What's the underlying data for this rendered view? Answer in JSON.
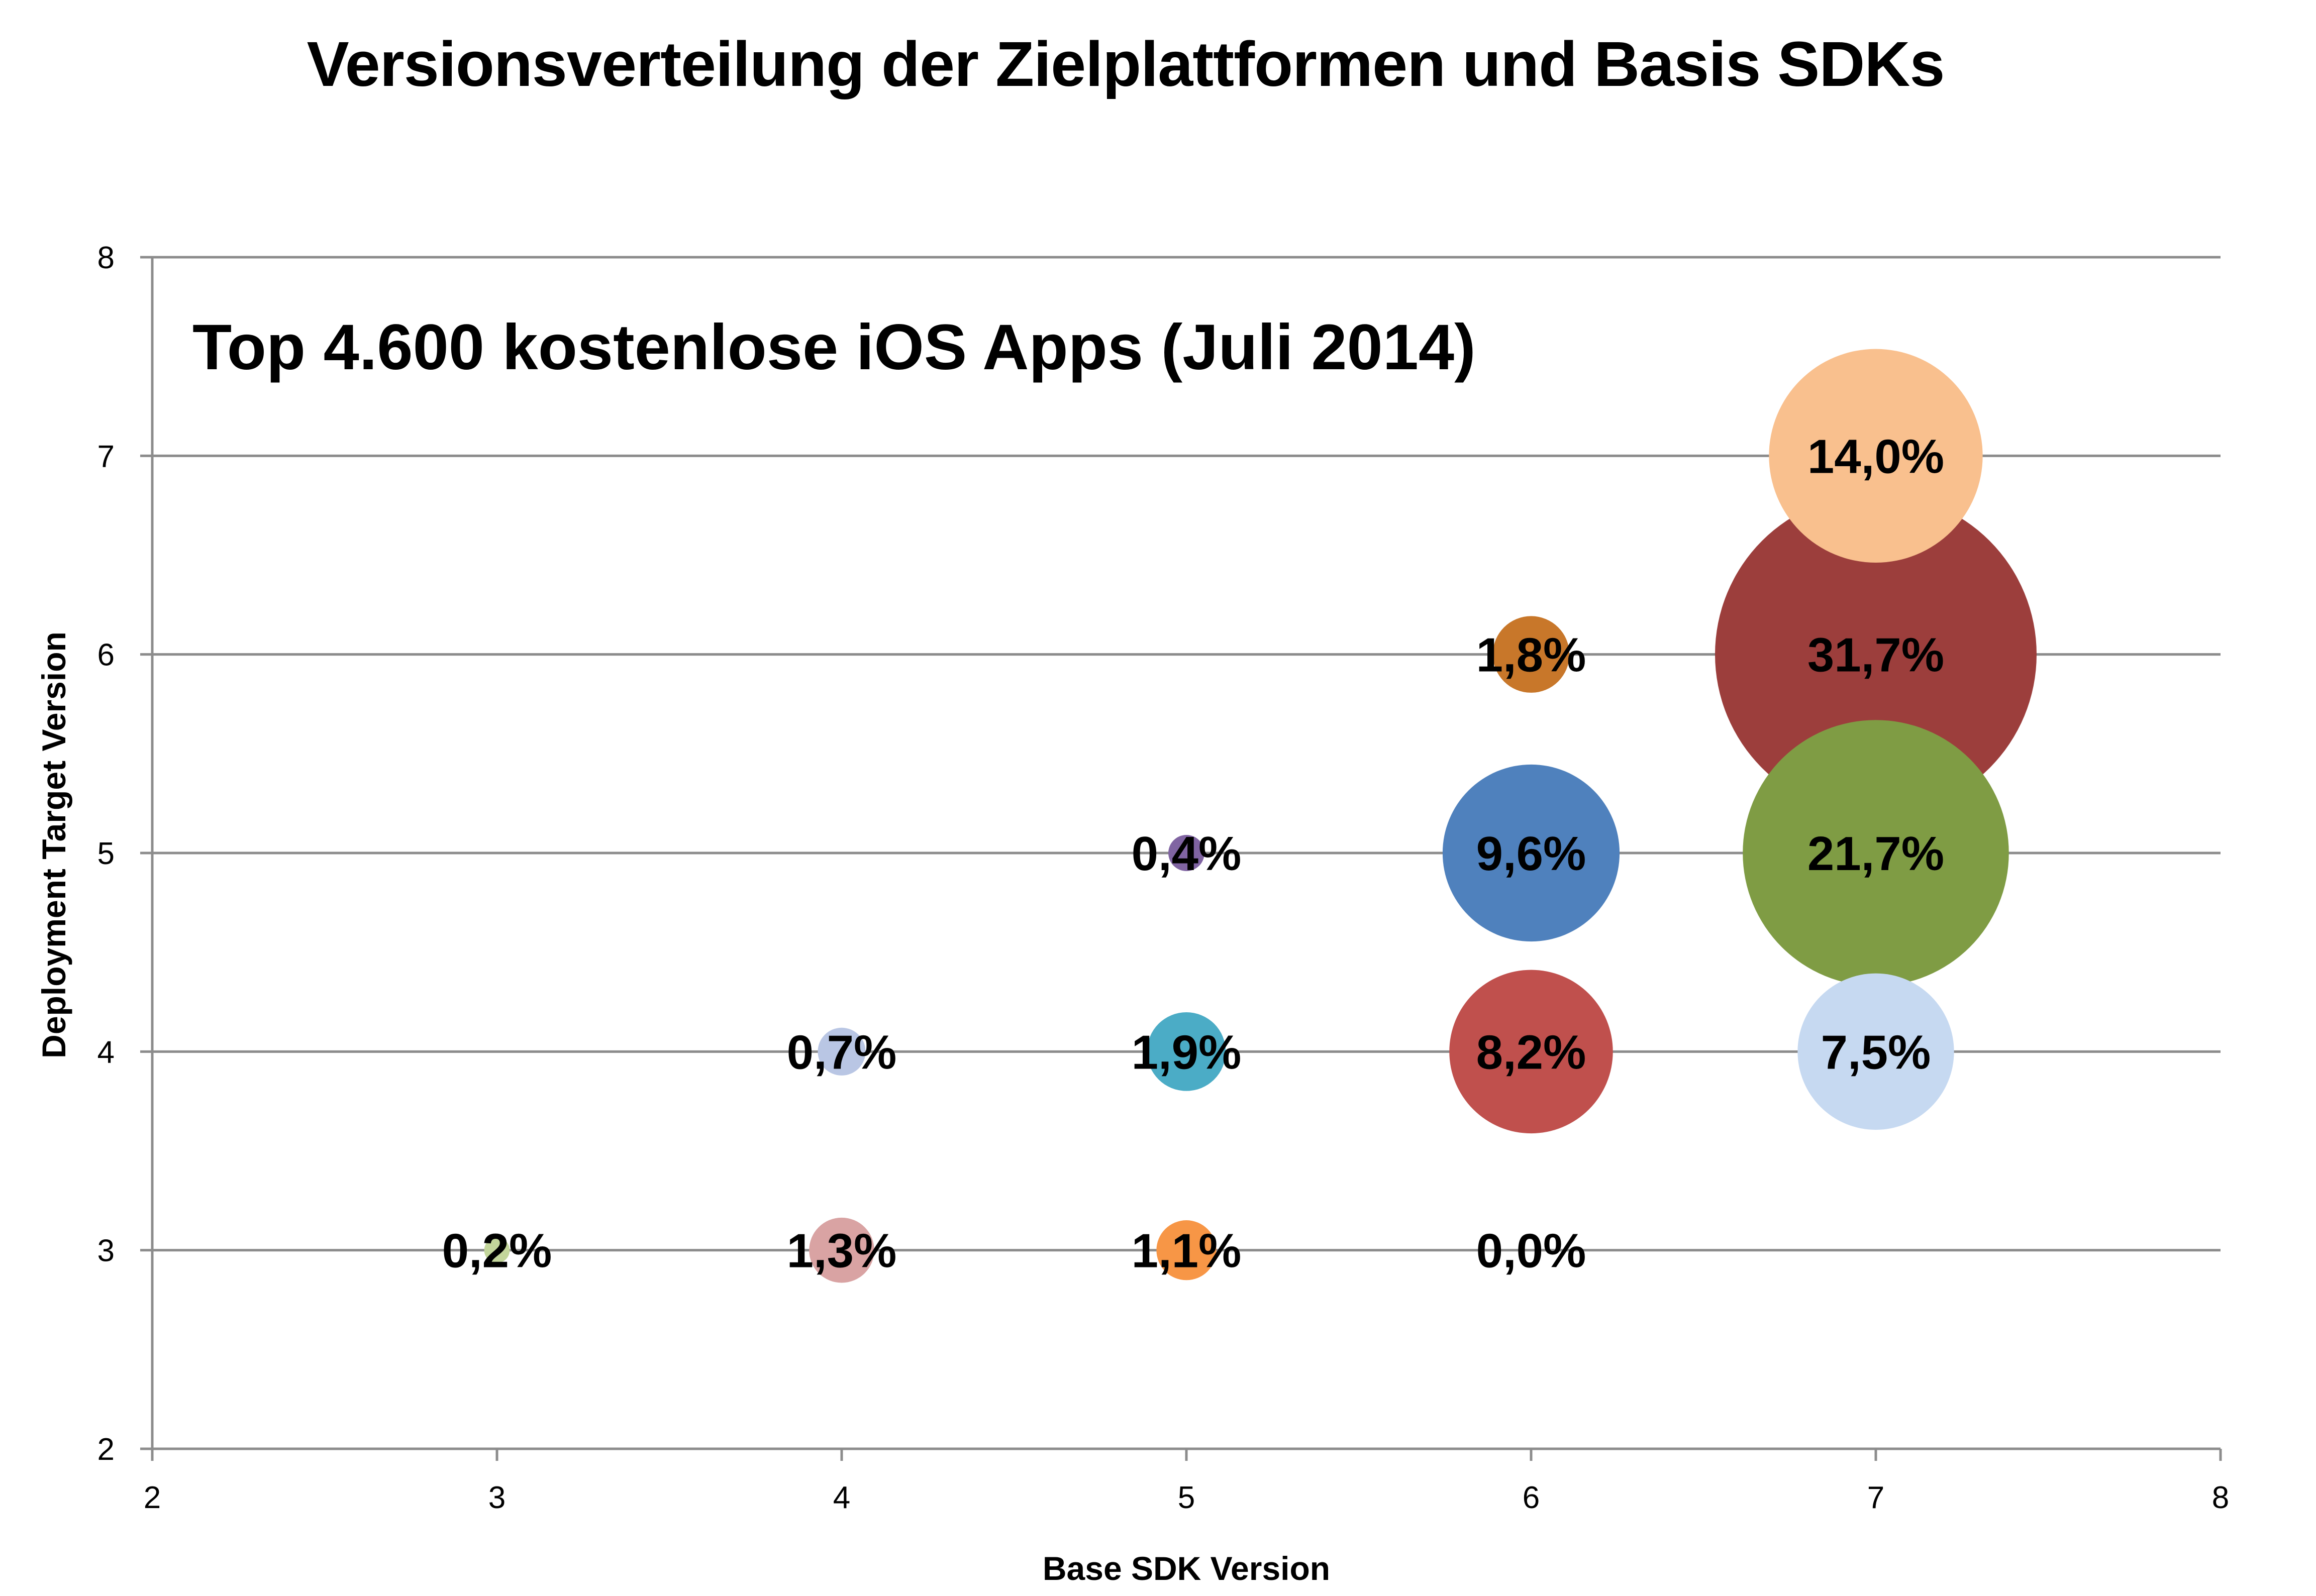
{
  "chart_data": {
    "type": "bubble",
    "title": "Versionsverteilung der Zielplattformen und Basis SDKs",
    "subtitle": "Top 4.600 kostenlose iOS Apps (Juli 2014)",
    "xlabel": "Base SDK Version",
    "ylabel": "Deployment Target Version",
    "xlim": [
      2,
      8
    ],
    "ylim": [
      2,
      8
    ],
    "xticks": [
      2,
      3,
      4,
      5,
      6,
      7,
      8
    ],
    "yticks": [
      2,
      3,
      4,
      5,
      6,
      7,
      8
    ],
    "grid": "horizontal",
    "points": [
      {
        "x": 3,
        "y": 3,
        "value": 0.2,
        "label": "0,2%",
        "color": "#c3d69b"
      },
      {
        "x": 4,
        "y": 3,
        "value": 1.3,
        "label": "1,3%",
        "color": "#d9a3a3"
      },
      {
        "x": 4,
        "y": 4,
        "value": 0.7,
        "label": "0,7%",
        "color": "#b9c6e4"
      },
      {
        "x": 5,
        "y": 3,
        "value": 1.1,
        "label": "1,1%",
        "color": "#f79646"
      },
      {
        "x": 5,
        "y": 4,
        "value": 1.9,
        "label": "1,9%",
        "color": "#4bacc6"
      },
      {
        "x": 5,
        "y": 5,
        "value": 0.4,
        "label": "0,4%",
        "color": "#8064a2"
      },
      {
        "x": 6,
        "y": 3,
        "value": 0.0,
        "label": "0,0%",
        "color": "#9bbb59"
      },
      {
        "x": 6,
        "y": 4,
        "value": 8.2,
        "label": "8,2%",
        "color": "#c0504d"
      },
      {
        "x": 6,
        "y": 5,
        "value": 9.6,
        "label": "9,6%",
        "color": "#4f81bd"
      },
      {
        "x": 6,
        "y": 6,
        "value": 1.8,
        "label": "1,8%",
        "color": "#c8772a"
      },
      {
        "x": 7,
        "y": 4,
        "value": 7.5,
        "label": "7,5%",
        "color": "#c6d9f1"
      },
      {
        "x": 7,
        "y": 5,
        "value": 21.7,
        "label": "21,7%",
        "color": "#7f9c44"
      },
      {
        "x": 7,
        "y": 6,
        "value": 31.7,
        "label": "31,7%",
        "color": "#9c3e3c"
      },
      {
        "x": 7,
        "y": 7,
        "value": 14.0,
        "label": "14,0%",
        "color": "#f9c08e"
      }
    ]
  }
}
